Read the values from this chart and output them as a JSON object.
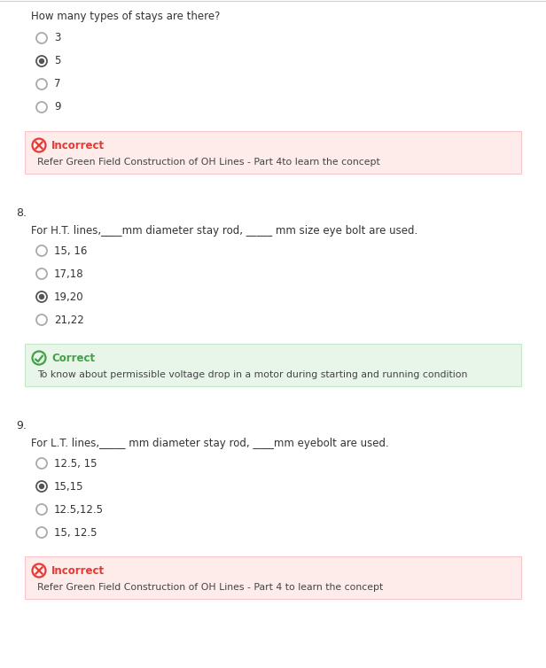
{
  "bg_color": "#ffffff",
  "top_border_color": "#d0d0d0",
  "question_color": "#333333",
  "option_color": "#333333",
  "radio_sel_color": "#555555",
  "radio_unsel_color": "#aaaaaa",
  "q7": {
    "question": "How many types of stays are there?",
    "options": [
      "3",
      "5",
      "7",
      "9"
    ],
    "selected": 1,
    "result_label": "Incorrect",
    "result_text": "Refer Green Field Construction of OH Lines - Part 4to learn the concept",
    "result_bg": "#fdecea",
    "result_border": "#f5c6cb",
    "result_icon_color": "#e53935",
    "result_label_color": "#e53935",
    "result_type": "incorrect"
  },
  "q8": {
    "number": "8.",
    "question": "For H.T. lines,____mm diameter stay rod, _____ mm size eye bolt are used.",
    "options": [
      "15, 16",
      "17,18",
      "19,20",
      "21,22"
    ],
    "selected": 2,
    "result_label": "Correct",
    "result_text": "To know about permissible voltage drop in a motor during starting and running condition",
    "result_bg": "#e8f5e9",
    "result_border": "#c8e6c9",
    "result_icon_color": "#43a047",
    "result_label_color": "#43a047",
    "result_type": "correct"
  },
  "q9": {
    "number": "9.",
    "question": "For L.T. lines,_____ mm diameter stay rod, ____mm eyebolt are used.",
    "options": [
      "12.5, 15",
      "15,15",
      "12.5,12.5",
      "15, 12.5"
    ],
    "selected": 1,
    "result_label": "Incorrect",
    "result_text": "Refer Green Field Construction of OH Lines - Part 4 to learn the concept",
    "result_bg": "#fdecea",
    "result_border": "#f5c6cb",
    "result_icon_color": "#e53935",
    "result_label_color": "#e53935",
    "result_type": "incorrect"
  }
}
